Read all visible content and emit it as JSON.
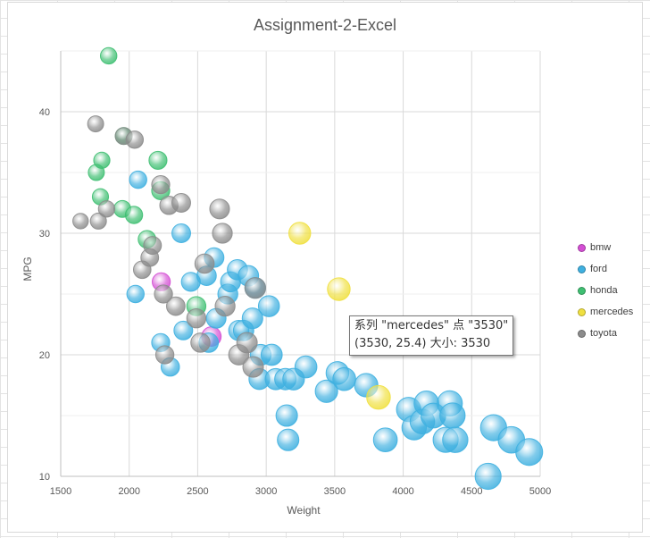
{
  "chart_data": {
    "type": "bubble",
    "title": "Assignment-2-Excel",
    "xlabel": "Weight",
    "ylabel": "MPG",
    "xlim": [
      1500,
      5000
    ],
    "ylim": [
      10,
      45
    ],
    "x_ticks": [
      "1500",
      "2000",
      "2500",
      "3000",
      "3500",
      "4000",
      "4500",
      "5000"
    ],
    "y_ticks": [
      "10",
      "20",
      "30",
      "40"
    ],
    "grid": "both",
    "legend_position": "right",
    "series": [
      {
        "name": "bmw",
        "color": "#d44fd4",
        "points": [
          [
            2234,
            26
          ],
          [
            2600,
            21.5
          ]
        ]
      },
      {
        "name": "ford",
        "color": "#3fb0e0",
        "points": [
          [
            2046,
            25
          ],
          [
            2065,
            34.4
          ],
          [
            2230,
            21
          ],
          [
            2300,
            19
          ],
          [
            2380,
            30
          ],
          [
            2395,
            22
          ],
          [
            2450,
            26
          ],
          [
            2565,
            26.5
          ],
          [
            2580,
            21
          ],
          [
            2620,
            28
          ],
          [
            2635,
            23
          ],
          [
            2720,
            25
          ],
          [
            2740,
            26
          ],
          [
            2790,
            27
          ],
          [
            2800,
            22
          ],
          [
            2835,
            22
          ],
          [
            2870,
            26.5
          ],
          [
            2900,
            23
          ],
          [
            2920,
            25.5
          ],
          [
            2950,
            18
          ],
          [
            2960,
            20
          ],
          [
            3020,
            24
          ],
          [
            3040,
            20
          ],
          [
            3070,
            18
          ],
          [
            3140,
            18
          ],
          [
            3150,
            15
          ],
          [
            3160,
            13
          ],
          [
            3200,
            18
          ],
          [
            3290,
            19
          ],
          [
            3440,
            17
          ],
          [
            3520,
            18.5
          ],
          [
            3570,
            18
          ],
          [
            3730,
            17.5
          ],
          [
            3870,
            13
          ],
          [
            4040,
            15.5
          ],
          [
            4080,
            14
          ],
          [
            4140,
            14.5
          ],
          [
            4170,
            16
          ],
          [
            4220,
            15
          ],
          [
            4310,
            13
          ],
          [
            4340,
            16
          ],
          [
            4360,
            15
          ],
          [
            4380,
            13
          ],
          [
            4620,
            10
          ],
          [
            4660,
            14
          ],
          [
            4790,
            13
          ],
          [
            4920,
            12
          ]
        ]
      },
      {
        "name": "honda",
        "color": "#3fbf72",
        "points": [
          [
            1760,
            35
          ],
          [
            1790,
            33
          ],
          [
            1800,
            36
          ],
          [
            1850,
            44.6
          ],
          [
            1950,
            32
          ],
          [
            1960,
            38
          ],
          [
            2035,
            31.5
          ],
          [
            2130,
            29.5
          ],
          [
            2210,
            36
          ],
          [
            2230,
            33.5
          ],
          [
            2490,
            24
          ]
        ]
      },
      {
        "name": "mercedes",
        "color": "#f0e040",
        "points": [
          [
            3245,
            30
          ],
          [
            3530,
            25.4
          ],
          [
            3820,
            16.5
          ]
        ]
      },
      {
        "name": "toyota",
        "color": "#8c8c8c",
        "points": [
          [
            1645,
            31
          ],
          [
            1755,
            39
          ],
          [
            1775,
            31
          ],
          [
            1835,
            32
          ],
          [
            1960,
            38
          ],
          [
            2040,
            37.7
          ],
          [
            2095,
            27
          ],
          [
            2150,
            28
          ],
          [
            2170,
            29
          ],
          [
            2230,
            34
          ],
          [
            2250,
            25
          ],
          [
            2260,
            20
          ],
          [
            2290,
            32.3
          ],
          [
            2340,
            24
          ],
          [
            2380,
            32.5
          ],
          [
            2490,
            23
          ],
          [
            2520,
            21
          ],
          [
            2550,
            27.5
          ],
          [
            2660,
            32
          ],
          [
            2680,
            30
          ],
          [
            2700,
            24
          ],
          [
            2800,
            20
          ],
          [
            2860,
            21
          ],
          [
            2905,
            19
          ],
          [
            2920,
            25.5
          ]
        ]
      }
    ],
    "tooltip": {
      "line1": "系列 \"mercedes\" 点 \"3530\"",
      "line2": "(3530, 25.4) 大小: 3530"
    }
  }
}
